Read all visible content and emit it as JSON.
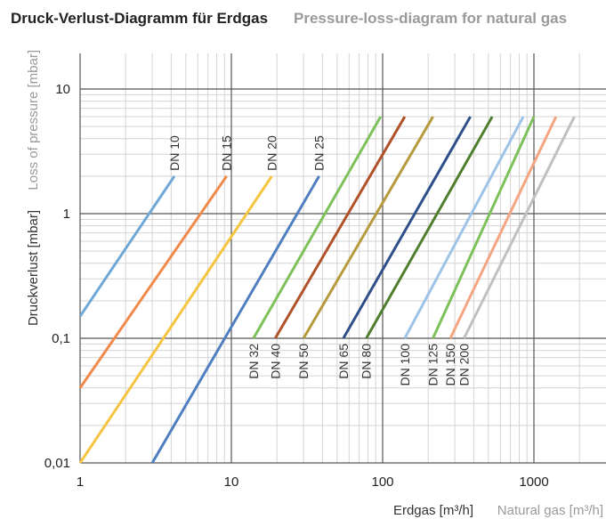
{
  "title": {
    "de": "Druck-Verlust-Diagramm für Erdgas",
    "en": "Pressure-loss-diagram for natural gas"
  },
  "chart_data": {
    "type": "line",
    "scale": {
      "x": "log",
      "y": "log"
    },
    "grid": true,
    "xlim": [
      1,
      2000
    ],
    "ylim": [
      0.01,
      20
    ],
    "xlabel_de": "Erdgas [m³/h]",
    "xlabel_en": "Natural gas [m³/h]",
    "ylabel_de": "Druckverlust [mbar]",
    "ylabel_en": "Loss of pressure [mbar]",
    "x_ticks": [
      "1",
      "10",
      "100",
      "1000"
    ],
    "y_ticks": [
      "10",
      "1",
      "0,1",
      "0,01"
    ],
    "x_tick_values": [
      1,
      10,
      100,
      1000
    ],
    "y_tick_values": [
      10,
      1,
      0.1,
      0.01
    ],
    "series": [
      {
        "name": "DN 10",
        "color": "#6fa8d6",
        "label_pos": "top",
        "points": [
          [
            1,
            0.15
          ],
          [
            4.2,
            2
          ]
        ]
      },
      {
        "name": "DN 15",
        "color": "#f08a4b",
        "label_pos": "top",
        "points": [
          [
            1,
            0.04
          ],
          [
            9.3,
            2
          ]
        ]
      },
      {
        "name": "DN 20",
        "color": "#f5c542",
        "label_pos": "top",
        "points": [
          [
            1,
            0.01
          ],
          [
            18.5,
            2
          ]
        ]
      },
      {
        "name": "DN 25",
        "color": "#4f7fc0",
        "label_pos": "top",
        "points": [
          [
            3,
            0.01
          ],
          [
            38,
            2
          ]
        ]
      },
      {
        "name": "DN 32",
        "color": "#7cc15a",
        "label_pos": "bottom",
        "points": [
          [
            14,
            0.1
          ],
          [
            97,
            6
          ]
        ]
      },
      {
        "name": "DN 40",
        "color": "#b0522a",
        "label_pos": "bottom",
        "points": [
          [
            19.5,
            0.1
          ],
          [
            140,
            6
          ]
        ]
      },
      {
        "name": "DN 50",
        "color": "#b79a3e",
        "label_pos": "bottom",
        "points": [
          [
            30,
            0.1
          ],
          [
            215,
            6
          ]
        ]
      },
      {
        "name": "DN 65",
        "color": "#2f4f8a",
        "label_pos": "bottom",
        "points": [
          [
            55,
            0.1
          ],
          [
            380,
            6
          ]
        ]
      },
      {
        "name": "DN 80",
        "color": "#4f7f2e",
        "label_pos": "bottom",
        "points": [
          [
            78,
            0.1
          ],
          [
            530,
            6
          ]
        ]
      },
      {
        "name": "DN 100",
        "color": "#9dc3e6",
        "label_pos": "bottom",
        "points": [
          [
            140,
            0.1
          ],
          [
            850,
            6
          ]
        ]
      },
      {
        "name": "DN 125",
        "color": "#7cc15a",
        "label_pos": "bottom",
        "points": [
          [
            215,
            0.1
          ],
          [
            1000,
            6
          ]
        ]
      },
      {
        "name": "DN 150",
        "color": "#f4a582",
        "label_pos": "bottom",
        "points": [
          [
            280,
            0.1
          ],
          [
            1400,
            6
          ]
        ]
      },
      {
        "name": "DN 200",
        "color": "#c0c0c0",
        "label_pos": "bottom",
        "points": [
          [
            345,
            0.1
          ],
          [
            1850,
            6
          ]
        ]
      }
    ]
  }
}
